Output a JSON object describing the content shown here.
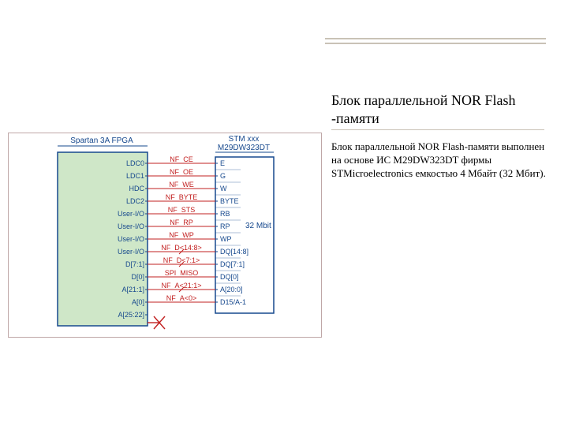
{
  "title": "Блок параллельной NOR Flash -памяти",
  "description": "Блок параллельной NOR Flash-памяти выполнен на основе ИС M29DW323DT фирмы STMicroelectronics емкостью 4 Мбайт (32 Мбит).",
  "diagram": {
    "left_header": "Spartan 3A FPGA",
    "right_header_top": "STM xxx",
    "right_header_bottom": "M29DW323DT",
    "capacity_label": "32 Mbit",
    "colors": {
      "block_fill": "#cfe7c8",
      "block_stroke": "#16488d",
      "wire": "#c22020",
      "text_signal": "#c22020",
      "text_pin": "#16488d",
      "frame": "#bfa7a7"
    },
    "left_pins": [
      "LDC0",
      "LDC1",
      "HDC",
      "LDC2",
      "User-I/O",
      "User-I/O",
      "User-I/O",
      "User-I/O",
      "D[7:1]",
      "D[0]",
      "A[21:1]",
      "A[0]",
      "A[25:22]"
    ],
    "right_pins": [
      "E",
      "G",
      "W",
      "BYTE",
      "RB",
      "RP",
      "WP",
      "DQ[14:8]",
      "DQ[7:1]",
      "DQ[0]",
      "A[20:0]",
      "D15/A-1"
    ],
    "nets": [
      "NF_CE",
      "NF_OE",
      "NF_WE",
      "NF_BYTE",
      "NF_STS",
      "NF_RP",
      "NF_WP",
      "NF_D<14:8>",
      "NF_D<7:1>",
      "SPI_MISO",
      "NF_A<21:1>",
      "NF_A<0>"
    ]
  }
}
